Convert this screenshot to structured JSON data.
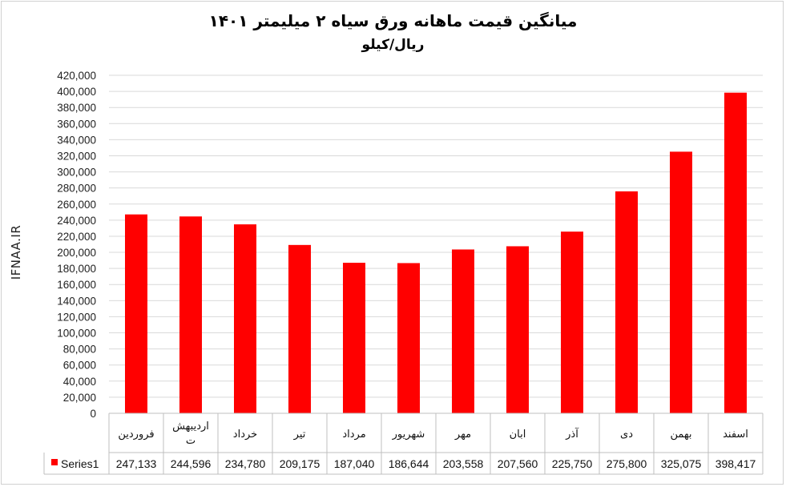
{
  "chart_data": {
    "type": "bar",
    "title": "میانگین قیمت ماهانه ورق سیاه ۲ میلیمتر ۱۴۰۱",
    "subtitle": "ریال/کیلو",
    "ylabel": "IFNAA.IR",
    "categories": [
      "فروردین",
      "اردیبهشت",
      "خرداد",
      "تیر",
      "مرداد",
      "شهریور",
      "مهر",
      "ابان",
      "آذر",
      "دی",
      "بهمن",
      "اسفند"
    ],
    "category_lines": [
      [
        "فروردین"
      ],
      [
        "اردیبهش",
        "ت"
      ],
      [
        "خرداد"
      ],
      [
        "تیر"
      ],
      [
        "مرداد"
      ],
      [
        "شهریور"
      ],
      [
        "مهر"
      ],
      [
        "ابان"
      ],
      [
        "آذر"
      ],
      [
        "دی"
      ],
      [
        "بهمن"
      ],
      [
        "اسفند"
      ]
    ],
    "series": [
      {
        "name": "Series1",
        "values": [
          247133,
          244596,
          234780,
          209175,
          187040,
          186644,
          203558,
          207560,
          225750,
          275800,
          325075,
          398417
        ],
        "labels": [
          "247,133",
          "244,596",
          "234,780",
          "209,175",
          "187,040",
          "186,644",
          "203,558",
          "207,560",
          "225,750",
          "275,800",
          "325,075",
          "398,417"
        ],
        "color": "#ff0000"
      }
    ],
    "ylim": [
      0,
      420000
    ],
    "ytick_step": 20000,
    "ytick_labels": [
      "0",
      "20,000",
      "40,000",
      "60,000",
      "80,000",
      "100,000",
      "120,000",
      "140,000",
      "160,000",
      "180,000",
      "200,000",
      "220,000",
      "240,000",
      "260,000",
      "280,000",
      "300,000",
      "320,000",
      "340,000",
      "360,000",
      "380,000",
      "400,000",
      "420,000"
    ],
    "grid": true,
    "legend": "data-table",
    "colors": {
      "bar": "#ff0000",
      "grid": "#d9d9d9",
      "axis": "#bfbfbf"
    }
  }
}
